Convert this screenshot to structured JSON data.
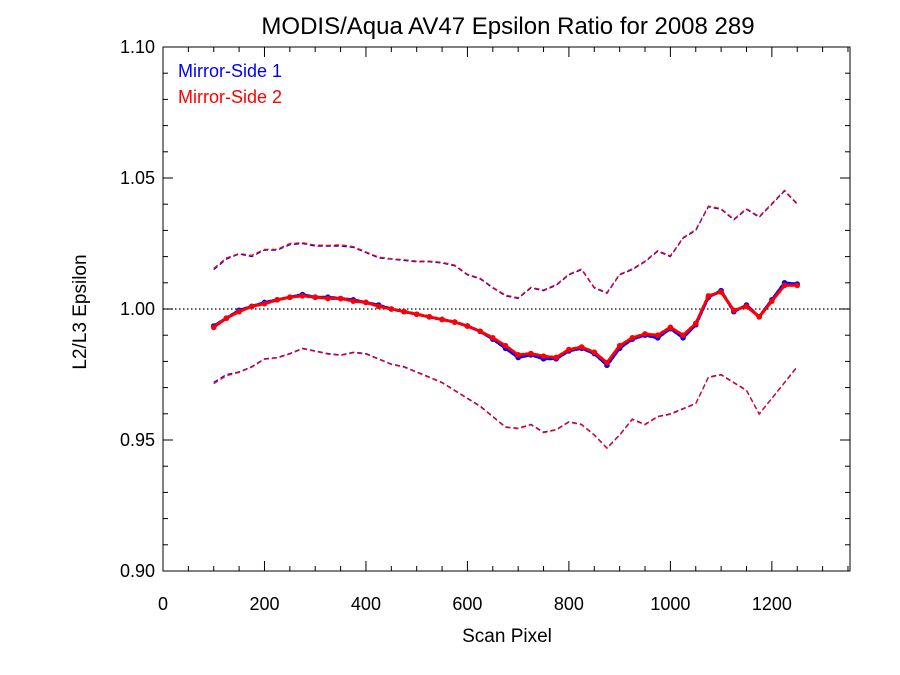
{
  "chart_data": {
    "type": "line",
    "title": "MODIS/Aqua AV47 Epsilon Ratio for 2008 289",
    "xlabel": "Scan Pixel",
    "ylabel": "L2/L3 Epsilon",
    "xlim": [
      0,
      1354
    ],
    "ylim": [
      0.9,
      1.1
    ],
    "xticks": [
      "0",
      "200",
      "400",
      "600",
      "800",
      "1000",
      "1200"
    ],
    "xtick_values": [
      0,
      200,
      400,
      600,
      800,
      1000,
      1200
    ],
    "yticks": [
      "0.90",
      "0.95",
      "1.00",
      "1.05",
      "1.10"
    ],
    "ytick_values": [
      0.9,
      0.95,
      1.0,
      1.05,
      1.1
    ],
    "reference_line": 1.0,
    "legend_position": "top-left",
    "colors": {
      "mirror1": "#0000ff",
      "mirror2": "#ff0000",
      "reference": "#000000"
    },
    "x": [
      100,
      125,
      150,
      175,
      200,
      225,
      250,
      275,
      300,
      325,
      350,
      375,
      400,
      425,
      450,
      475,
      500,
      525,
      550,
      575,
      600,
      625,
      650,
      675,
      700,
      725,
      750,
      775,
      800,
      825,
      850,
      875,
      900,
      925,
      950,
      975,
      1000,
      1025,
      1050,
      1075,
      1100,
      1125,
      1150,
      1175,
      1200,
      1225,
      1250
    ],
    "series": [
      {
        "name": "Mirror-Side 1",
        "mean": [
          0.9935,
          0.9965,
          0.9995,
          1.001,
          1.0025,
          1.0035,
          1.0045,
          1.0055,
          1.0045,
          1.0045,
          1.004,
          1.0035,
          1.0025,
          1.0015,
          1.0,
          0.999,
          0.998,
          0.997,
          0.996,
          0.995,
          0.9935,
          0.9915,
          0.9885,
          0.985,
          0.9815,
          0.9825,
          0.981,
          0.981,
          0.984,
          0.985,
          0.983,
          0.9785,
          0.985,
          0.9885,
          0.99,
          0.989,
          0.9925,
          0.989,
          0.994,
          1.0045,
          1.007,
          0.999,
          1.0015,
          0.997,
          1.0035,
          1.01,
          1.0095
        ],
        "upper": [
          1.015,
          1.019,
          1.021,
          1.02,
          1.0225,
          1.0225,
          1.0245,
          1.025,
          1.024,
          1.024,
          1.024,
          1.0235,
          1.0215,
          1.0195,
          1.019,
          1.0185,
          1.018,
          1.018,
          1.0175,
          1.0165,
          1.013,
          1.0115,
          1.008,
          1.005,
          1.004,
          1.008,
          1.007,
          1.009,
          1.013,
          1.015,
          1.008,
          1.006,
          1.013,
          1.015,
          1.018,
          1.022,
          1.02,
          1.027,
          1.03,
          1.039,
          1.038,
          1.034,
          1.038,
          1.035,
          1.04,
          1.045,
          1.04
        ],
        "lower": [
          0.972,
          0.975,
          0.976,
          0.978,
          0.981,
          0.9815,
          0.983,
          0.985,
          0.984,
          0.983,
          0.9825,
          0.9835,
          0.983,
          0.981,
          0.979,
          0.978,
          0.976,
          0.974,
          0.972,
          0.969,
          0.966,
          0.963,
          0.959,
          0.955,
          0.9545,
          0.956,
          0.953,
          0.954,
          0.957,
          0.956,
          0.952,
          0.947,
          0.952,
          0.958,
          0.956,
          0.959,
          0.96,
          0.962,
          0.964,
          0.974,
          0.975,
          0.972,
          0.969,
          0.96,
          0.966,
          0.972,
          0.978
        ]
      },
      {
        "name": "Mirror-Side 2",
        "mean": [
          0.993,
          0.9965,
          0.999,
          1.001,
          1.002,
          1.0035,
          1.0045,
          1.005,
          1.0045,
          1.004,
          1.004,
          1.003,
          1.0025,
          1.001,
          1.0,
          0.999,
          0.998,
          0.997,
          0.996,
          0.995,
          0.9935,
          0.9915,
          0.989,
          0.986,
          0.9825,
          0.983,
          0.982,
          0.9815,
          0.9845,
          0.9855,
          0.9835,
          0.9795,
          0.986,
          0.989,
          0.9905,
          0.99,
          0.993,
          0.99,
          0.9945,
          1.005,
          1.0065,
          0.9995,
          1.001,
          0.997,
          1.003,
          1.009,
          1.009
        ],
        "upper": [
          1.0155,
          1.0195,
          1.0212,
          1.0205,
          1.0228,
          1.0228,
          1.025,
          1.0253,
          1.0244,
          1.0243,
          1.0245,
          1.0238,
          1.0218,
          1.0198,
          1.0192,
          1.0188,
          1.0183,
          1.0183,
          1.0178,
          1.0168,
          1.0133,
          1.0118,
          1.0083,
          1.0053,
          1.0043,
          1.0083,
          1.0073,
          1.0093,
          1.0133,
          1.0153,
          1.0083,
          1.0063,
          1.0133,
          1.0153,
          1.0183,
          1.0223,
          1.0203,
          1.0273,
          1.0303,
          1.0393,
          1.0383,
          1.0343,
          1.0383,
          1.0353,
          1.0403,
          1.0453,
          1.0403
        ],
        "lower": [
          0.9715,
          0.9745,
          0.9758,
          0.9778,
          0.9808,
          0.9813,
          0.9828,
          0.9848,
          0.9838,
          0.9828,
          0.9823,
          0.9833,
          0.9828,
          0.9808,
          0.9788,
          0.9778,
          0.9758,
          0.9738,
          0.9718,
          0.9688,
          0.9658,
          0.9628,
          0.9588,
          0.9548,
          0.9543,
          0.9558,
          0.9528,
          0.9538,
          0.9568,
          0.9558,
          0.9518,
          0.9468,
          0.9518,
          0.9578,
          0.9558,
          0.9588,
          0.9598,
          0.9618,
          0.9638,
          0.9738,
          0.9748,
          0.9718,
          0.9688,
          0.9598,
          0.9658,
          0.9718,
          0.9778
        ]
      }
    ]
  }
}
